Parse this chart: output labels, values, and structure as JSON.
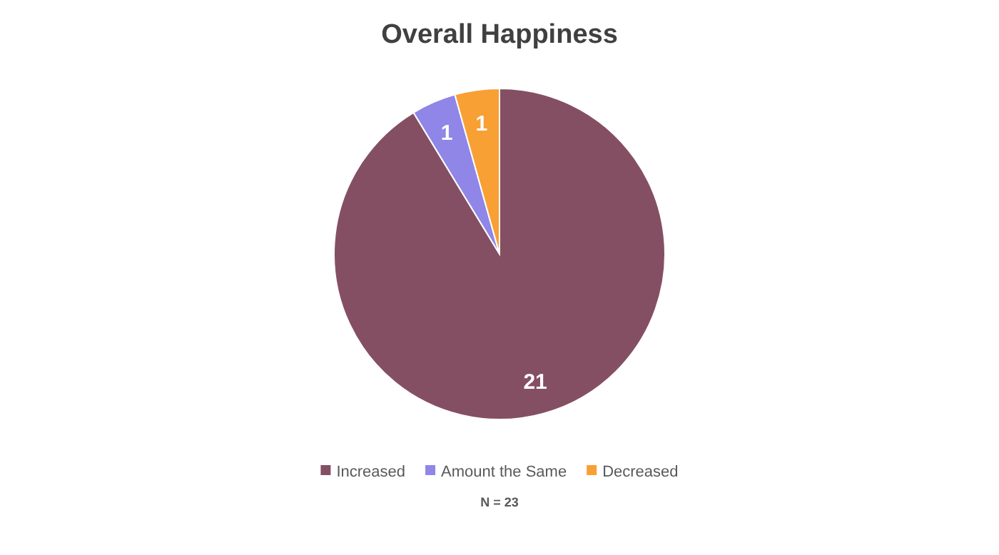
{
  "chart_data": {
    "type": "pie",
    "title": "Overall Happiness",
    "categories": [
      "Increased",
      "Amount the Same",
      "Decreased"
    ],
    "values": [
      21,
      1,
      1
    ],
    "colors": [
      "#854f63",
      "#8f86e8",
      "#f8a033"
    ],
    "data_labels": true,
    "legend": "bottom",
    "annotations": [
      "N = 23"
    ]
  }
}
